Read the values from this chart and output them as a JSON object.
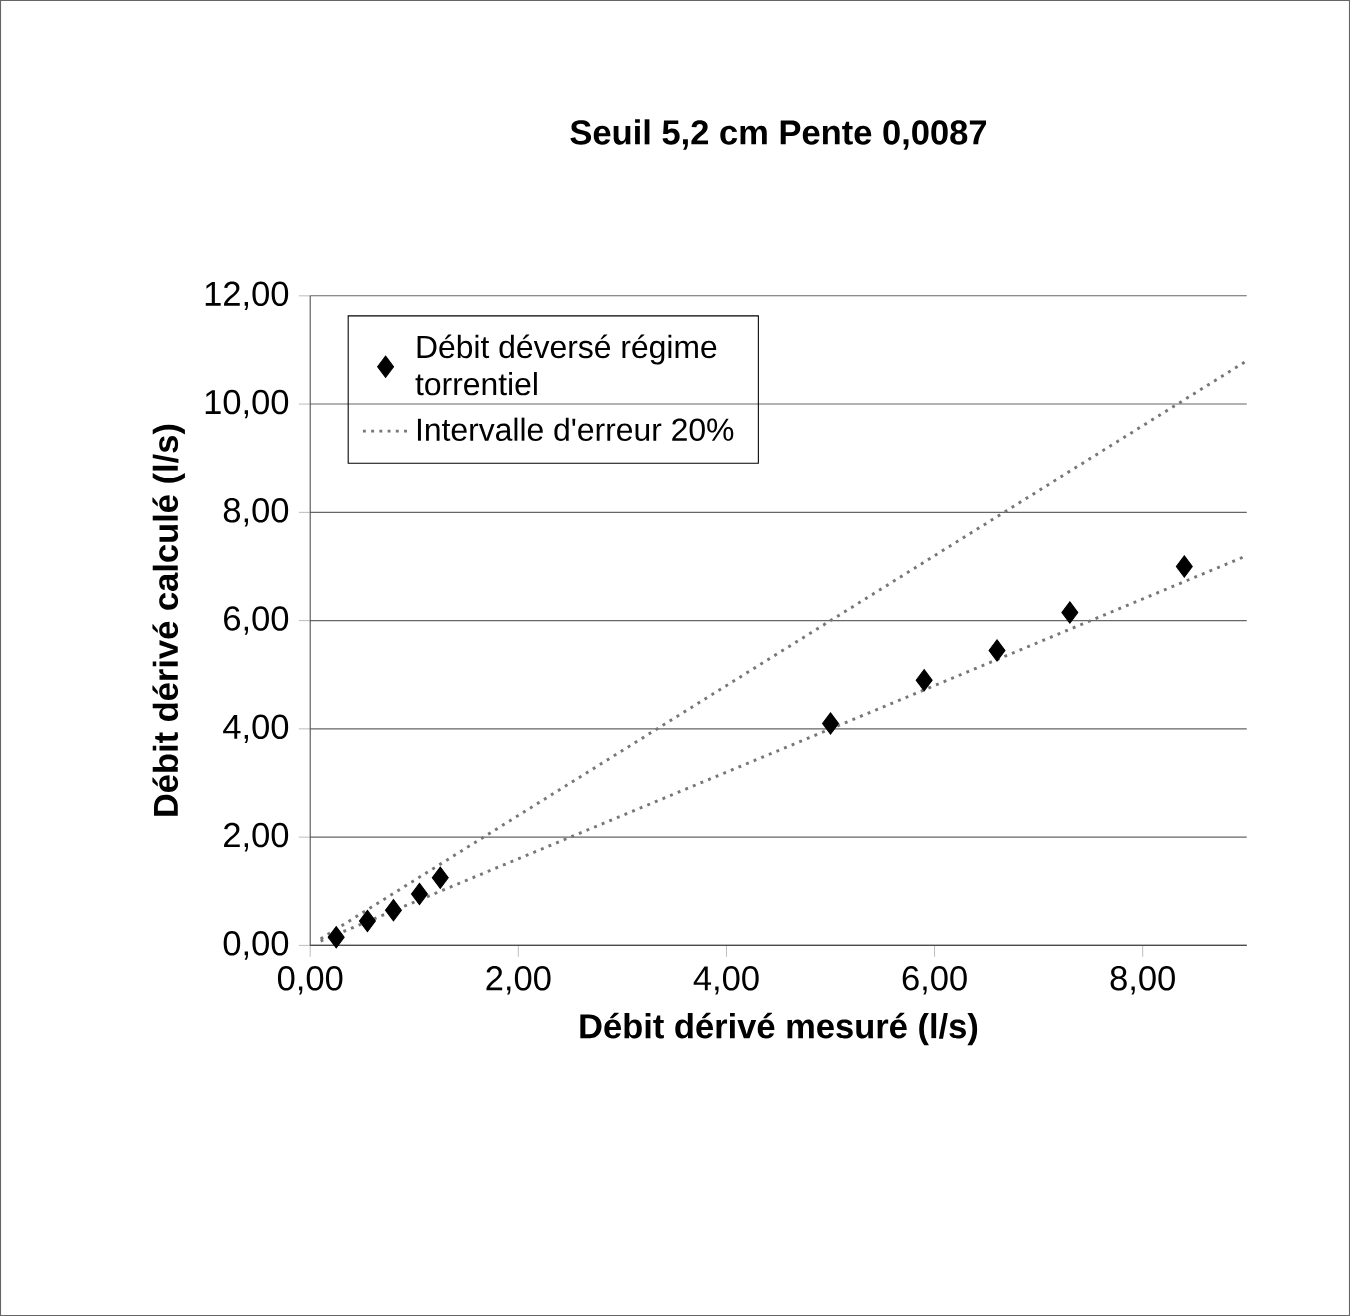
{
  "chart_data": {
    "type": "scatter",
    "title": "Seuil 5,2 cm     Pente 0,0087",
    "xlabel": "Débit dérivé mesuré (l/s)",
    "ylabel": "Débit dérivé calculé (l/s)",
    "xlim": [
      0,
      9
    ],
    "ylim": [
      0,
      12
    ],
    "xticks": [
      {
        "value": 0,
        "label": "0,00"
      },
      {
        "value": 2,
        "label": "2,00"
      },
      {
        "value": 4,
        "label": "4,00"
      },
      {
        "value": 6,
        "label": "6,00"
      },
      {
        "value": 8,
        "label": "8,00"
      }
    ],
    "yticks": [
      {
        "value": 0,
        "label": "0,00"
      },
      {
        "value": 2,
        "label": "2,00"
      },
      {
        "value": 4,
        "label": "4,00"
      },
      {
        "value": 6,
        "label": "6,00"
      },
      {
        "value": 8,
        "label": "8,00"
      },
      {
        "value": 10,
        "label": "10,00"
      },
      {
        "value": 12,
        "label": "12,00"
      }
    ],
    "grid": "y",
    "legend": "top left",
    "series": [
      {
        "name": "Débit déversé régime torrentiel",
        "type": "scatter",
        "marker": "diamond",
        "color": "#000000",
        "x": [
          0.25,
          0.55,
          0.8,
          1.05,
          1.25,
          5.0,
          5.9,
          6.6,
          7.3,
          8.4
        ],
        "values": [
          0.15,
          0.45,
          0.65,
          0.95,
          1.25,
          4.1,
          4.9,
          5.45,
          6.15,
          7.0
        ]
      },
      {
        "name": "Intervalle d'erreur 20%",
        "type": "line",
        "line_style": "dotted",
        "marker": "none",
        "color": "#777777",
        "x": [
          0.1,
          9
        ],
        "values": [
          0.12,
          10.8
        ]
      },
      {
        "type": "line",
        "line_style": "dotted",
        "marker": "none",
        "color": "#777777",
        "x": [
          0.1,
          9
        ],
        "values": [
          0.08,
          7.2
        ]
      }
    ]
  }
}
